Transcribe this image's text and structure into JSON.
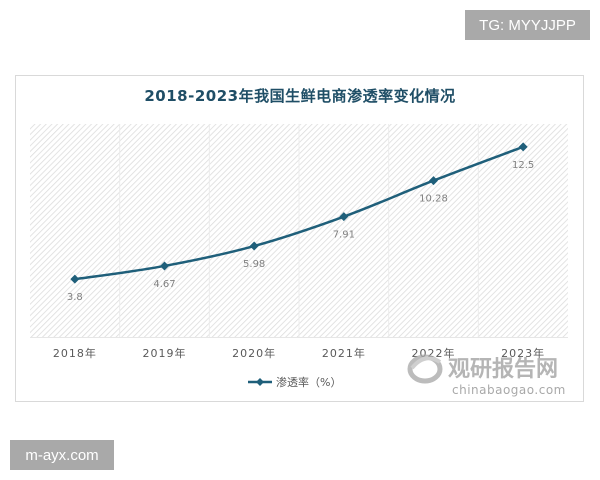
{
  "badges": {
    "top_right": "TG: MYYJJPP",
    "bottom_left": "m-ayx.com"
  },
  "watermark": {
    "name_cn": "观研报告网",
    "url": "chinabaogao.com"
  },
  "colors": {
    "line": "#1f5f7a",
    "title": "#1f4e66",
    "hatch": "#d9d9d9",
    "axis_text": "#595959",
    "data_label": "#808080"
  },
  "chart_data": {
    "type": "line",
    "title": "2018-2023年我国生鲜电商渗透率变化情况",
    "categories": [
      "2018年",
      "2019年",
      "2020年",
      "2021年",
      "2022年",
      "2023年"
    ],
    "series": [
      {
        "name": "渗透率（%）",
        "values": [
          3.8,
          4.67,
          5.98,
          7.91,
          10.28,
          12.5
        ],
        "marker": "diamond"
      }
    ],
    "data_labels": [
      "3.8",
      "4.67",
      "5.98",
      "7.91",
      "10.28",
      "12.5"
    ],
    "xlabel": "",
    "ylabel": "",
    "ylim": [
      0,
      14
    ],
    "y_axis_visible": false,
    "grid": "vertical category separators (faint)",
    "background": "diagonal hatch",
    "legend_position": "bottom"
  }
}
